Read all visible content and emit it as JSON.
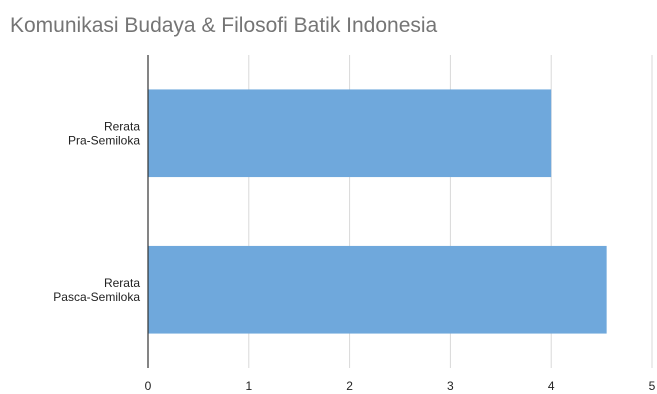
{
  "chart_data": {
    "type": "bar",
    "orientation": "horizontal",
    "title": "Komunikasi Budaya & Filosofi Batik Indonesia",
    "categories": [
      [
        "Rerata",
        "Pra-Semiloka"
      ],
      [
        "Rerata",
        "Pasca-Semiloka"
      ]
    ],
    "values": [
      4.0,
      4.55
    ],
    "xlim": [
      0,
      5
    ],
    "xticks": [
      "0",
      "1",
      "2",
      "3",
      "4",
      "5"
    ],
    "grid": true,
    "legend": "none",
    "colors": {
      "bar": "#6fa8dc",
      "grid": "#d9d9d9",
      "axis": "#333333",
      "title": "#757575"
    }
  }
}
